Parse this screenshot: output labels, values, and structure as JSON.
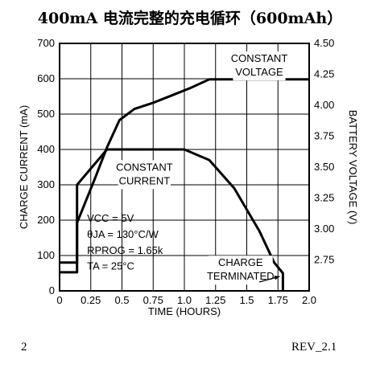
{
  "document": {
    "title": "400mA 电流完整的充电循环（600mAh）",
    "page_number": "2",
    "revision": "REV_2.1"
  },
  "chart_data": {
    "type": "line",
    "xlabel": "TIME (HOURS)",
    "ylabel_left": "CHARGE CURRENT (mA)",
    "ylabel_right": "BATTERY VOLTAGE (V)",
    "xlim": [
      0,
      2.0
    ],
    "ylim_left": [
      0,
      700
    ],
    "ylim_right": [
      2.5,
      4.5
    ],
    "x_ticks": [
      "0",
      "0.25",
      "0.5",
      "0.75",
      "1.0",
      "1.25",
      "1.5",
      "1.75",
      "2.0"
    ],
    "y_ticks_left": [
      "0",
      "100",
      "200",
      "300",
      "400",
      "500",
      "600",
      "700"
    ],
    "y_ticks_right": [
      "2.75",
      "3.00",
      "3.25",
      "3.50",
      "3.75",
      "4.00",
      "4.25",
      "4.50"
    ],
    "grid": true,
    "series": [
      {
        "axis": "left",
        "points": [
          [
            0,
            80
          ],
          [
            0.14,
            80
          ],
          [
            0.14,
            300
          ],
          [
            0.38,
            400
          ],
          [
            1.0,
            400
          ],
          [
            1.2,
            370
          ],
          [
            1.4,
            290
          ],
          [
            1.6,
            170
          ],
          [
            1.72,
            80
          ],
          [
            1.79,
            50
          ],
          [
            1.79,
            0
          ]
        ]
      },
      {
        "axis": "right",
        "points": [
          [
            0,
            2.65
          ],
          [
            0.14,
            2.65
          ],
          [
            0.14,
            3.05
          ],
          [
            0.28,
            3.4
          ],
          [
            0.38,
            3.66
          ],
          [
            0.48,
            3.88
          ],
          [
            0.6,
            3.97
          ],
          [
            0.75,
            4.02
          ],
          [
            0.9,
            4.08
          ],
          [
            1.05,
            4.14
          ],
          [
            1.2,
            4.21
          ],
          [
            1.75,
            4.21
          ],
          [
            2.0,
            4.21
          ]
        ]
      }
    ],
    "annotations": [
      {
        "lines": [
          "CONSTANT",
          "VOLTAGE"
        ],
        "x": 1.6,
        "y": 4.35,
        "axis": "right"
      },
      {
        "lines": [
          "CONSTANT",
          "CURRENT"
        ],
        "x": 0.68,
        "y": 340,
        "axis": "left"
      },
      {
        "lines": [
          "CHARGE",
          "TERMINATED"
        ],
        "x": 1.45,
        "y": 70,
        "axis": "left"
      }
    ],
    "conditions": [
      "VCC = 5V",
      "θJA = 130°C/W",
      "RPROG = 1.65k",
      "TA = 25°C"
    ]
  }
}
